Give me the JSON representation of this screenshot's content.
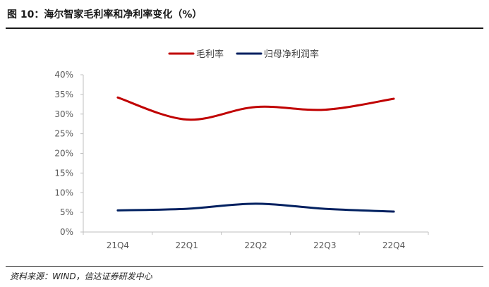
{
  "figure": {
    "title": "图 10：海尔智家毛利率和净利率变化（%）",
    "source": "资料来源：WIND，信达证券研发中心"
  },
  "chart_data": {
    "type": "line",
    "title": "",
    "xlabel": "",
    "ylabel": "",
    "categories": [
      "21Q4",
      "22Q1",
      "22Q2",
      "22Q3",
      "22Q4"
    ],
    "y_ticks": [
      "0%",
      "5%",
      "10%",
      "15%",
      "20%",
      "25%",
      "30%",
      "35%",
      "40%"
    ],
    "ylim": [
      0,
      40
    ],
    "grid": false,
    "smooth": true,
    "legend_position": "top-center",
    "series": [
      {
        "name": "毛利率",
        "color": "#c00000",
        "values": [
          34.2,
          28.6,
          31.8,
          31.1,
          33.9
        ]
      },
      {
        "name": "归母净利润率",
        "color": "#002060",
        "values": [
          5.5,
          5.9,
          7.2,
          5.9,
          5.2
        ]
      }
    ]
  }
}
